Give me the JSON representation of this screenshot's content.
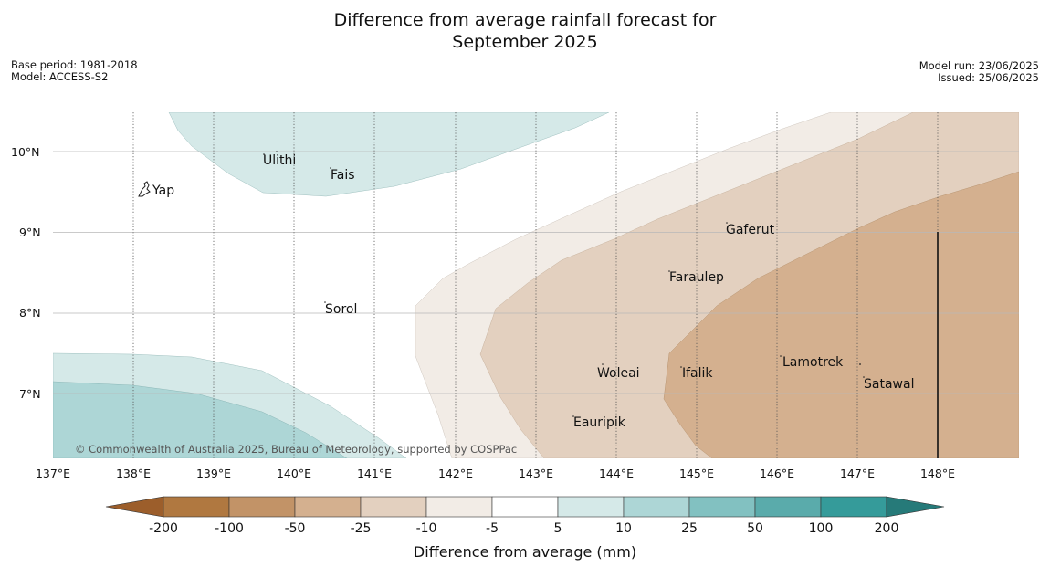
{
  "title_line1": "Difference from average rainfall forecast for",
  "title_line2": "September 2025",
  "meta_left": {
    "base_period": "Base period: 1981-2018",
    "model": "Model: ACCESS-S2"
  },
  "meta_right": {
    "model_run": "Model run: 23/06/2025",
    "issued": "Issued: 25/06/2025"
  },
  "copyright": "© Commonwealth of Australia 2025, Bureau of Meteorology, supported by COSPPac",
  "lon_labels": [
    "137°E",
    "138°E",
    "139°E",
    "140°E",
    "141°E",
    "142°E",
    "143°E",
    "144°E",
    "145°E",
    "146°E",
    "147°E",
    "148°E"
  ],
  "lat_labels": [
    "10°N",
    "9°N",
    "8°N",
    "7°N"
  ],
  "places": [
    {
      "name": "Ulithi"
    },
    {
      "name": "Fais"
    },
    {
      "name": "Yap"
    },
    {
      "name": "Gaferut"
    },
    {
      "name": "Faraulep"
    },
    {
      "name": "Sorol"
    },
    {
      "name": "Lamotrek"
    },
    {
      "name": "Woleai"
    },
    {
      "name": "Ifalik"
    },
    {
      "name": "Satawal"
    },
    {
      "name": "Eauripik"
    }
  ],
  "colorbar": {
    "title": "Difference from average (mm)",
    "labels": [
      "-200",
      "-100",
      "-50",
      "-25",
      "-10",
      "-5",
      "5",
      "10",
      "25",
      "50",
      "100",
      "200"
    ],
    "colors": {
      "under": "#9c5e2b",
      "bins": [
        "#b07840",
        "#c29367",
        "#d4b08f",
        "#e3d0bf",
        "#f2ece6",
        "#ffffff",
        "#d5e9e8",
        "#add6d6",
        "#82c1c1",
        "#5aabab",
        "#359b9a"
      ],
      "over": "#267a79"
    }
  }
}
